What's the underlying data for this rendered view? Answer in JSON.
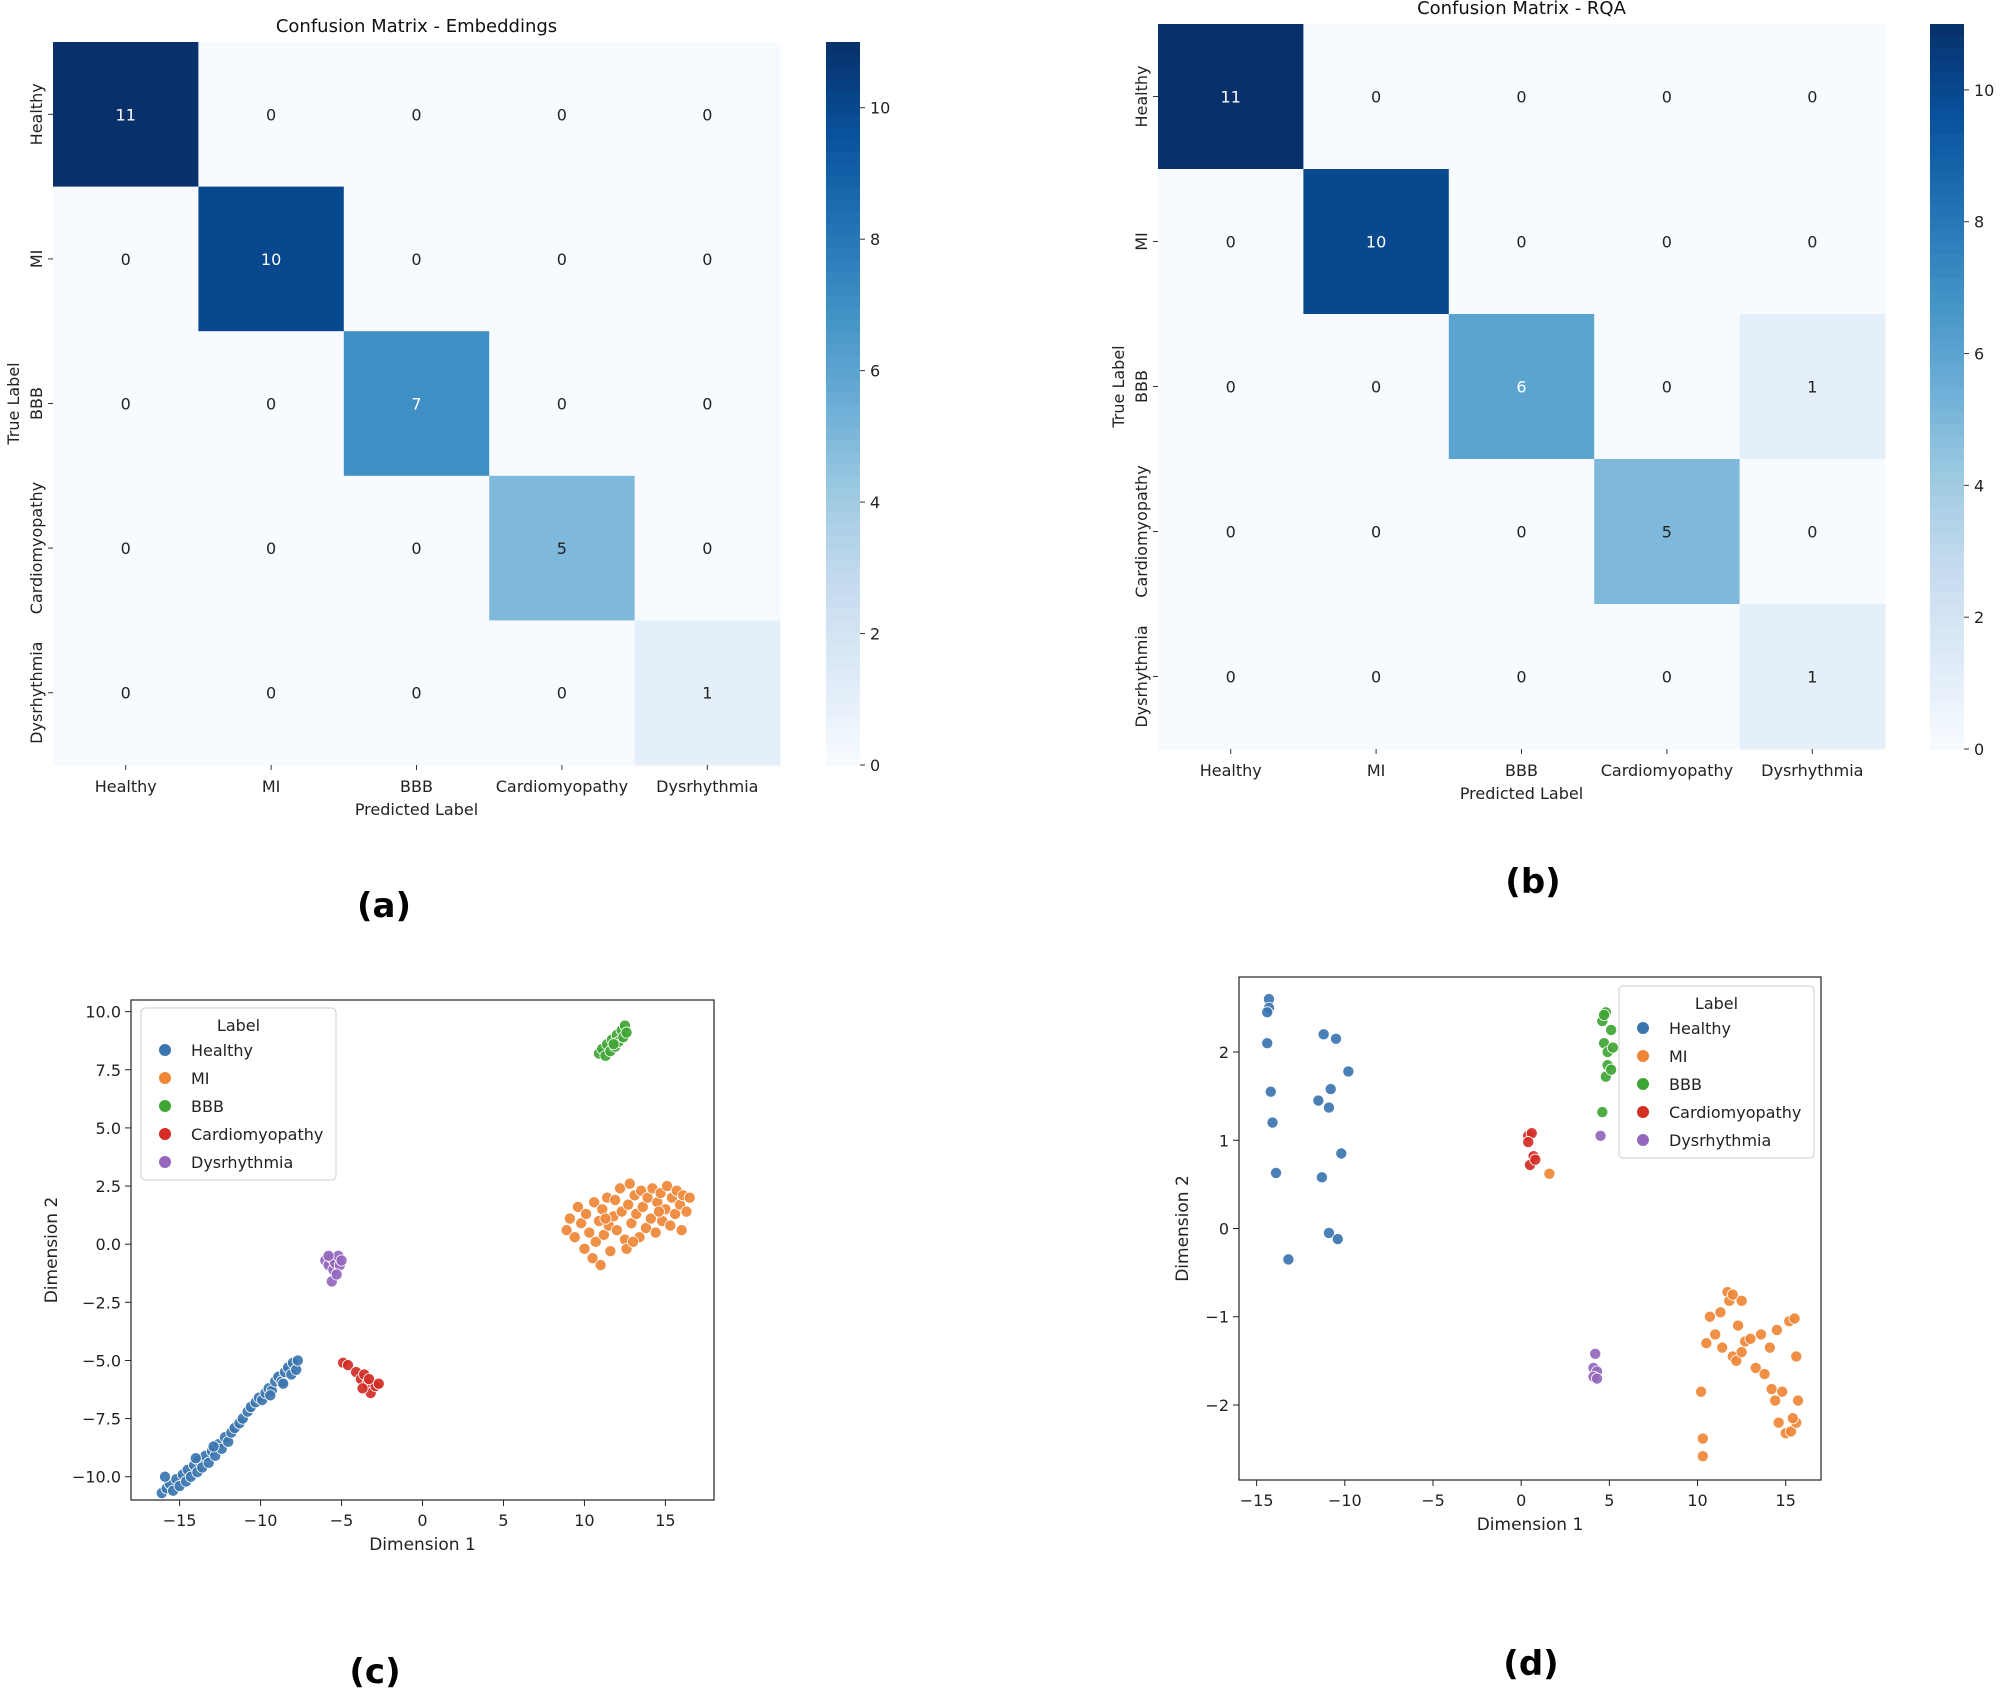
{
  "chart_data": [
    {
      "panel": "(a)",
      "type": "heatmap",
      "title": "Confusion Matrix - Embeddings",
      "xlabel": "Predicted Label",
      "ylabel": "True Label",
      "x_categories": [
        "Healthy",
        "MI",
        "BBB",
        "Cardiomyopathy",
        "Dysrhythmia"
      ],
      "y_categories": [
        "Healthy",
        "MI",
        "BBB",
        "Cardiomyopathy",
        "Dysrhythmia"
      ],
      "matrix": [
        [
          11,
          0,
          0,
          0,
          0
        ],
        [
          0,
          10,
          0,
          0,
          0
        ],
        [
          0,
          0,
          7,
          0,
          0
        ],
        [
          0,
          0,
          0,
          5,
          0
        ],
        [
          0,
          0,
          0,
          0,
          1
        ]
      ],
      "colorbar": {
        "min": 0,
        "max": 11,
        "ticks": [
          "0",
          "2",
          "4",
          "6",
          "8",
          "10"
        ]
      }
    },
    {
      "panel": "(b)",
      "type": "heatmap",
      "title": "Confusion Matrix - RQA",
      "xlabel": "Predicted Label",
      "ylabel": "True Label",
      "x_categories": [
        "Healthy",
        "MI",
        "BBB",
        "Cardiomyopathy",
        "Dysrhythmia"
      ],
      "y_categories": [
        "Healthy",
        "MI",
        "BBB",
        "Cardiomyopathy",
        "Dysrhythmia"
      ],
      "matrix": [
        [
          11,
          0,
          0,
          0,
          0
        ],
        [
          0,
          10,
          0,
          0,
          0
        ],
        [
          0,
          0,
          6,
          0,
          1
        ],
        [
          0,
          0,
          0,
          5,
          0
        ],
        [
          0,
          0,
          0,
          0,
          1
        ]
      ],
      "colorbar": {
        "min": 0,
        "max": 11,
        "ticks": [
          "0",
          "2",
          "4",
          "6",
          "8",
          "10"
        ]
      }
    },
    {
      "panel": "(c)",
      "type": "scatter",
      "title": "",
      "xlabel": "Dimension 1",
      "ylabel": "Dimension 2",
      "xlim": [
        -18,
        18
      ],
      "ylim": [
        -11,
        10.5
      ],
      "xticks": [
        "−15",
        "−10",
        "−5",
        "0",
        "5",
        "10",
        "15"
      ],
      "yticks": [
        "−10.0",
        "−7.5",
        "−5.0",
        "−2.5",
        "0.0",
        "2.5",
        "5.0",
        "7.5",
        "10.0"
      ],
      "legend_title": "Label",
      "legend_position": "upper-left",
      "series": [
        {
          "name": "Healthy",
          "color": "#3b75af",
          "points": [
            [
              -16.1,
              -10.7
            ],
            [
              -15.8,
              -10.5
            ],
            [
              -15.6,
              -10.3
            ],
            [
              -15.4,
              -10.6
            ],
            [
              -15.2,
              -10.1
            ],
            [
              -15.0,
              -10.4
            ],
            [
              -14.8,
              -9.9
            ],
            [
              -14.6,
              -10.2
            ],
            [
              -14.5,
              -9.7
            ],
            [
              -14.3,
              -10.0
            ],
            [
              -14.1,
              -9.5
            ],
            [
              -13.9,
              -9.8
            ],
            [
              -13.8,
              -9.3
            ],
            [
              -13.6,
              -9.6
            ],
            [
              -13.4,
              -9.1
            ],
            [
              -13.2,
              -9.4
            ],
            [
              -13.0,
              -8.9
            ],
            [
              -12.8,
              -9.1
            ],
            [
              -12.6,
              -8.6
            ],
            [
              -12.4,
              -8.8
            ],
            [
              -12.2,
              -8.3
            ],
            [
              -12.0,
              -8.5
            ],
            [
              -11.8,
              -8.1
            ],
            [
              -11.6,
              -7.9
            ],
            [
              -11.3,
              -7.7
            ],
            [
              -11.1,
              -7.5
            ],
            [
              -10.8,
              -7.2
            ],
            [
              -10.6,
              -7.0
            ],
            [
              -10.3,
              -6.8
            ],
            [
              -10.1,
              -6.6
            ],
            [
              -9.9,
              -6.7
            ],
            [
              -9.7,
              -6.4
            ],
            [
              -9.5,
              -6.2
            ],
            [
              -9.3,
              -6.3
            ],
            [
              -9.1,
              -5.9
            ],
            [
              -8.9,
              -5.7
            ],
            [
              -8.7,
              -5.9
            ],
            [
              -8.5,
              -5.5
            ],
            [
              -8.3,
              -5.3
            ],
            [
              -8.1,
              -5.6
            ],
            [
              -8.0,
              -5.1
            ],
            [
              -7.8,
              -5.4
            ],
            [
              -7.7,
              -5.0
            ],
            [
              -8.6,
              -6.0
            ],
            [
              -9.4,
              -6.5
            ],
            [
              -12.9,
              -8.7
            ],
            [
              -15.9,
              -10.0
            ],
            [
              -14.0,
              -9.2
            ]
          ]
        },
        {
          "name": "MI",
          "color": "#ef8636",
          "points": [
            [
              8.9,
              0.6
            ],
            [
              9.1,
              1.1
            ],
            [
              9.4,
              0.3
            ],
            [
              9.6,
              1.6
            ],
            [
              9.8,
              0.9
            ],
            [
              10.0,
              -0.2
            ],
            [
              10.1,
              1.3
            ],
            [
              10.3,
              0.5
            ],
            [
              10.5,
              -0.6
            ],
            [
              10.6,
              1.8
            ],
            [
              10.7,
              0.1
            ],
            [
              10.9,
              1.0
            ],
            [
              11.0,
              -0.9
            ],
            [
              11.1,
              1.5
            ],
            [
              11.2,
              0.4
            ],
            [
              11.4,
              2.0
            ],
            [
              11.5,
              0.8
            ],
            [
              11.6,
              -0.3
            ],
            [
              11.8,
              1.2
            ],
            [
              11.9,
              1.9
            ],
            [
              12.0,
              0.6
            ],
            [
              12.2,
              2.4
            ],
            [
              12.3,
              1.4
            ],
            [
              12.5,
              0.2
            ],
            [
              12.6,
              -0.2
            ],
            [
              12.7,
              1.7
            ],
            [
              12.8,
              2.6
            ],
            [
              12.9,
              0.9
            ],
            [
              13.1,
              2.1
            ],
            [
              13.2,
              1.3
            ],
            [
              13.4,
              0.3
            ],
            [
              13.5,
              2.3
            ],
            [
              13.6,
              1.6
            ],
            [
              13.8,
              0.7
            ],
            [
              13.9,
              2.0
            ],
            [
              14.1,
              1.1
            ],
            [
              14.2,
              2.4
            ],
            [
              14.4,
              0.5
            ],
            [
              14.5,
              1.8
            ],
            [
              14.7,
              2.2
            ],
            [
              14.8,
              1.0
            ],
            [
              15.0,
              1.5
            ],
            [
              15.1,
              2.5
            ],
            [
              15.3,
              0.8
            ],
            [
              15.4,
              2.0
            ],
            [
              15.6,
              1.3
            ],
            [
              15.7,
              2.3
            ],
            [
              15.9,
              1.7
            ],
            [
              16.0,
              0.6
            ],
            [
              16.1,
              2.1
            ],
            [
              16.3,
              1.4
            ],
            [
              16.5,
              2.0
            ],
            [
              11.3,
              1.1
            ],
            [
              13.0,
              0.1
            ],
            [
              14.6,
              1.4
            ]
          ]
        },
        {
          "name": "BBB",
          "color": "#3fa534",
          "points": [
            [
              10.9,
              8.2
            ],
            [
              11.1,
              8.4
            ],
            [
              11.3,
              8.1
            ],
            [
              11.4,
              8.6
            ],
            [
              11.6,
              8.3
            ],
            [
              11.7,
              8.8
            ],
            [
              11.9,
              8.5
            ],
            [
              12.0,
              9.0
            ],
            [
              12.1,
              8.7
            ],
            [
              12.3,
              9.2
            ],
            [
              12.4,
              8.9
            ],
            [
              12.5,
              9.4
            ],
            [
              12.6,
              9.1
            ],
            [
              11.8,
              8.6
            ]
          ]
        },
        {
          "name": "Cardiomyopathy",
          "color": "#d42d26",
          "points": [
            [
              -4.9,
              -5.1
            ],
            [
              -4.6,
              -5.2
            ],
            [
              -4.1,
              -5.5
            ],
            [
              -3.8,
              -5.8
            ],
            [
              -3.6,
              -5.6
            ],
            [
              -3.4,
              -6.0
            ],
            [
              -3.2,
              -6.4
            ],
            [
              -2.9,
              -6.1
            ],
            [
              -3.7,
              -6.2
            ],
            [
              -3.3,
              -5.8
            ],
            [
              -2.7,
              -6.0
            ]
          ]
        },
        {
          "name": "Dysrhythmia",
          "color": "#9467bd",
          "points": [
            [
              -6.0,
              -0.7
            ],
            [
              -5.8,
              -0.9
            ],
            [
              -5.6,
              -0.6
            ],
            [
              -5.5,
              -1.1
            ],
            [
              -5.4,
              -0.8
            ],
            [
              -5.2,
              -0.5
            ],
            [
              -5.1,
              -0.9
            ],
            [
              -5.0,
              -0.7
            ],
            [
              -5.6,
              -1.6
            ],
            [
              -5.3,
              -1.3
            ],
            [
              -5.8,
              -0.5
            ]
          ]
        }
      ]
    },
    {
      "panel": "(d)",
      "type": "scatter",
      "title": "",
      "xlabel": "Dimension 1",
      "ylabel": "Dimension 2",
      "xlim": [
        -16,
        17
      ],
      "ylim": [
        -2.85,
        2.85
      ],
      "xticks": [
        "−15",
        "−10",
        "−5",
        "0",
        "5",
        "10",
        "15"
      ],
      "yticks": [
        "−2",
        "−1",
        "0",
        "1",
        "2"
      ],
      "legend_title": "Label",
      "legend_position": "upper-right",
      "series": [
        {
          "name": "Healthy",
          "color": "#3b75af",
          "points": [
            [
              -14.3,
              2.6
            ],
            [
              -14.3,
              2.5
            ],
            [
              -14.4,
              2.45
            ],
            [
              -14.4,
              2.1
            ],
            [
              -14.2,
              1.55
            ],
            [
              -14.1,
              1.2
            ],
            [
              -13.9,
              0.63
            ],
            [
              -13.2,
              -0.35
            ],
            [
              -11.5,
              1.45
            ],
            [
              -11.2,
              2.2
            ],
            [
              -10.8,
              1.58
            ],
            [
              -10.5,
              2.15
            ],
            [
              -10.9,
              1.37
            ],
            [
              -11.3,
              0.58
            ],
            [
              -9.8,
              1.78
            ],
            [
              -10.2,
              0.85
            ],
            [
              -10.9,
              -0.05
            ],
            [
              -10.4,
              -0.12
            ]
          ]
        },
        {
          "name": "MI",
          "color": "#ef8636",
          "points": [
            [
              1.6,
              0.62
            ],
            [
              10.2,
              -1.85
            ],
            [
              10.3,
              -2.38
            ],
            [
              10.3,
              -2.58
            ],
            [
              10.5,
              -1.3
            ],
            [
              10.7,
              -1.0
            ],
            [
              11.0,
              -1.2
            ],
            [
              11.3,
              -0.95
            ],
            [
              11.4,
              -1.35
            ],
            [
              11.7,
              -0.72
            ],
            [
              11.8,
              -0.82
            ],
            [
              12.0,
              -1.45
            ],
            [
              12.0,
              -0.75
            ],
            [
              12.2,
              -1.5
            ],
            [
              12.3,
              -1.1
            ],
            [
              12.5,
              -0.82
            ],
            [
              12.5,
              -1.4
            ],
            [
              12.7,
              -1.28
            ],
            [
              13.0,
              -1.25
            ],
            [
              13.3,
              -1.58
            ],
            [
              13.6,
              -1.2
            ],
            [
              13.8,
              -1.65
            ],
            [
              14.1,
              -1.35
            ],
            [
              14.2,
              -1.82
            ],
            [
              14.4,
              -1.95
            ],
            [
              14.5,
              -1.15
            ],
            [
              14.6,
              -2.2
            ],
            [
              14.8,
              -1.85
            ],
            [
              15.0,
              -2.32
            ],
            [
              15.2,
              -1.05
            ],
            [
              15.3,
              -2.3
            ],
            [
              15.5,
              -1.02
            ],
            [
              15.6,
              -2.2
            ],
            [
              15.6,
              -1.45
            ],
            [
              15.7,
              -1.95
            ],
            [
              15.4,
              -2.15
            ]
          ]
        },
        {
          "name": "BBB",
          "color": "#3fa534",
          "points": [
            [
              4.6,
              2.35
            ],
            [
              4.8,
              2.45
            ],
            [
              4.7,
              2.1
            ],
            [
              4.9,
              2.0
            ],
            [
              5.1,
              2.25
            ],
            [
              4.9,
              1.85
            ],
            [
              5.2,
              2.05
            ],
            [
              4.8,
              1.72
            ],
            [
              5.1,
              1.8
            ],
            [
              4.7,
              2.42
            ],
            [
              4.6,
              1.32
            ]
          ]
        },
        {
          "name": "Cardiomyopathy",
          "color": "#d42d26",
          "points": [
            [
              0.4,
              1.05
            ],
            [
              0.6,
              1.08
            ],
            [
              0.7,
              0.82
            ],
            [
              0.5,
              0.72
            ],
            [
              0.8,
              0.78
            ],
            [
              0.4,
              0.98
            ]
          ]
        },
        {
          "name": "Dysrhythmia",
          "color": "#9467bd",
          "points": [
            [
              4.2,
              -1.42
            ],
            [
              4.1,
              -1.58
            ],
            [
              4.3,
              -1.62
            ],
            [
              4.1,
              -1.68
            ],
            [
              4.3,
              -1.7
            ],
            [
              4.5,
              1.05
            ]
          ]
        }
      ]
    }
  ]
}
